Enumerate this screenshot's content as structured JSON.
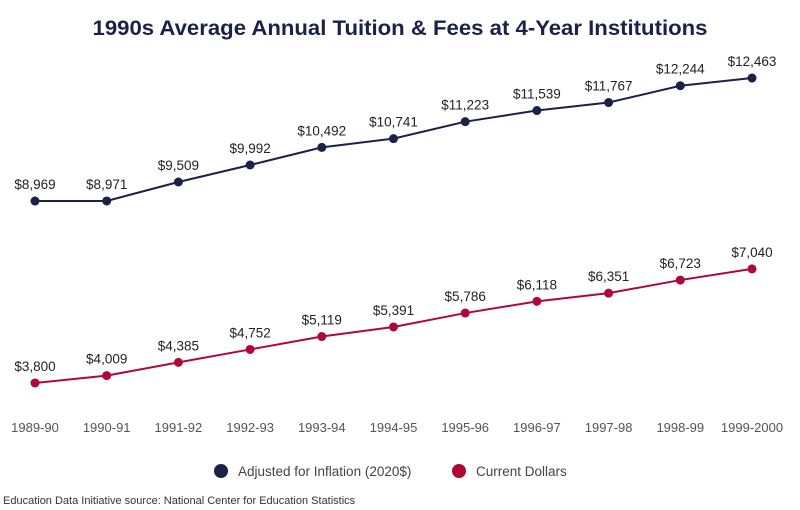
{
  "chart_data": {
    "type": "line",
    "title": "1990s Average Annual Tuition & Fees at 4-Year Institutions",
    "xlabel": "",
    "ylabel": "",
    "categories": [
      "1989-90",
      "1990-91",
      "1991-92",
      "1992-93",
      "1993-94",
      "1994-95",
      "1995-96",
      "1996-97",
      "1997-98",
      "1998-99",
      "1999-2000"
    ],
    "ylim": [
      3316,
      12833
    ],
    "grid": false,
    "legend_position": "bottom",
    "series": [
      {
        "name": "Adjusted for Inflation (2020$)",
        "color": "#1b2147",
        "values": [
          8969,
          8971,
          9509,
          9992,
          10492,
          10741,
          11223,
          11539,
          11767,
          12244,
          12463
        ],
        "labels": [
          "$8,969",
          "$8,971",
          "$9,509",
          "$9,992",
          "$10,492",
          "$10,741",
          "$11,223",
          "$11,539",
          "$11,767",
          "$12,244",
          "$12,463"
        ]
      },
      {
        "name": "Current Dollars",
        "color": "#b0073a",
        "values": [
          3800,
          4009,
          4385,
          4752,
          5119,
          5391,
          5786,
          6118,
          6351,
          6723,
          7040
        ],
        "labels": [
          "$3,800",
          "$4,009",
          "$4,385",
          "$4,752",
          "$5,119",
          "$5,391",
          "$5,786",
          "$6,118",
          "$6,351",
          "$6,723",
          "$7,040"
        ]
      }
    ]
  },
  "footer": {
    "source": "Education Data Initiative source: National Center for Education Statistics"
  }
}
